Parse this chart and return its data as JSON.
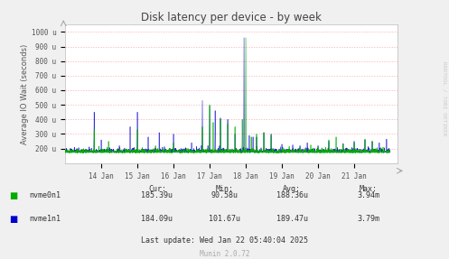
{
  "title": "Disk latency per device - by week",
  "ylabel": "Average IO Wait (seconds)",
  "background_color": "#f0f0f0",
  "plot_bg_color": "#ffffff",
  "grid_color": "#ffaaaa",
  "ylim": [
    100,
    1050
  ],
  "color_nvme0": "#00aa00",
  "color_nvme1": "#0000cc",
  "legend": [
    {
      "label": "nvme0n1",
      "color": "#00aa00"
    },
    {
      "label": "nvme1n1",
      "color": "#0000cc"
    }
  ],
  "stats": {
    "cur": [
      "185.39u",
      "184.09u"
    ],
    "min": [
      "90.58u",
      "101.67u"
    ],
    "avg": [
      "188.36u",
      "189.47u"
    ],
    "max": [
      "3.94m",
      "3.79m"
    ]
  },
  "x_tick_labels": [
    "14 Jan",
    "15 Jan",
    "16 Jan",
    "17 Jan",
    "18 Jan",
    "19 Jan",
    "20 Jan",
    "21 Jan"
  ],
  "yticks": [
    200,
    300,
    400,
    500,
    600,
    700,
    800,
    900,
    1000
  ],
  "last_update": "Last update: Wed Jan 22 05:40:04 2025",
  "munin_version": "Munin 2.0.72",
  "rrdtool_label": "RRDTOOL / TOBI OETIKER"
}
